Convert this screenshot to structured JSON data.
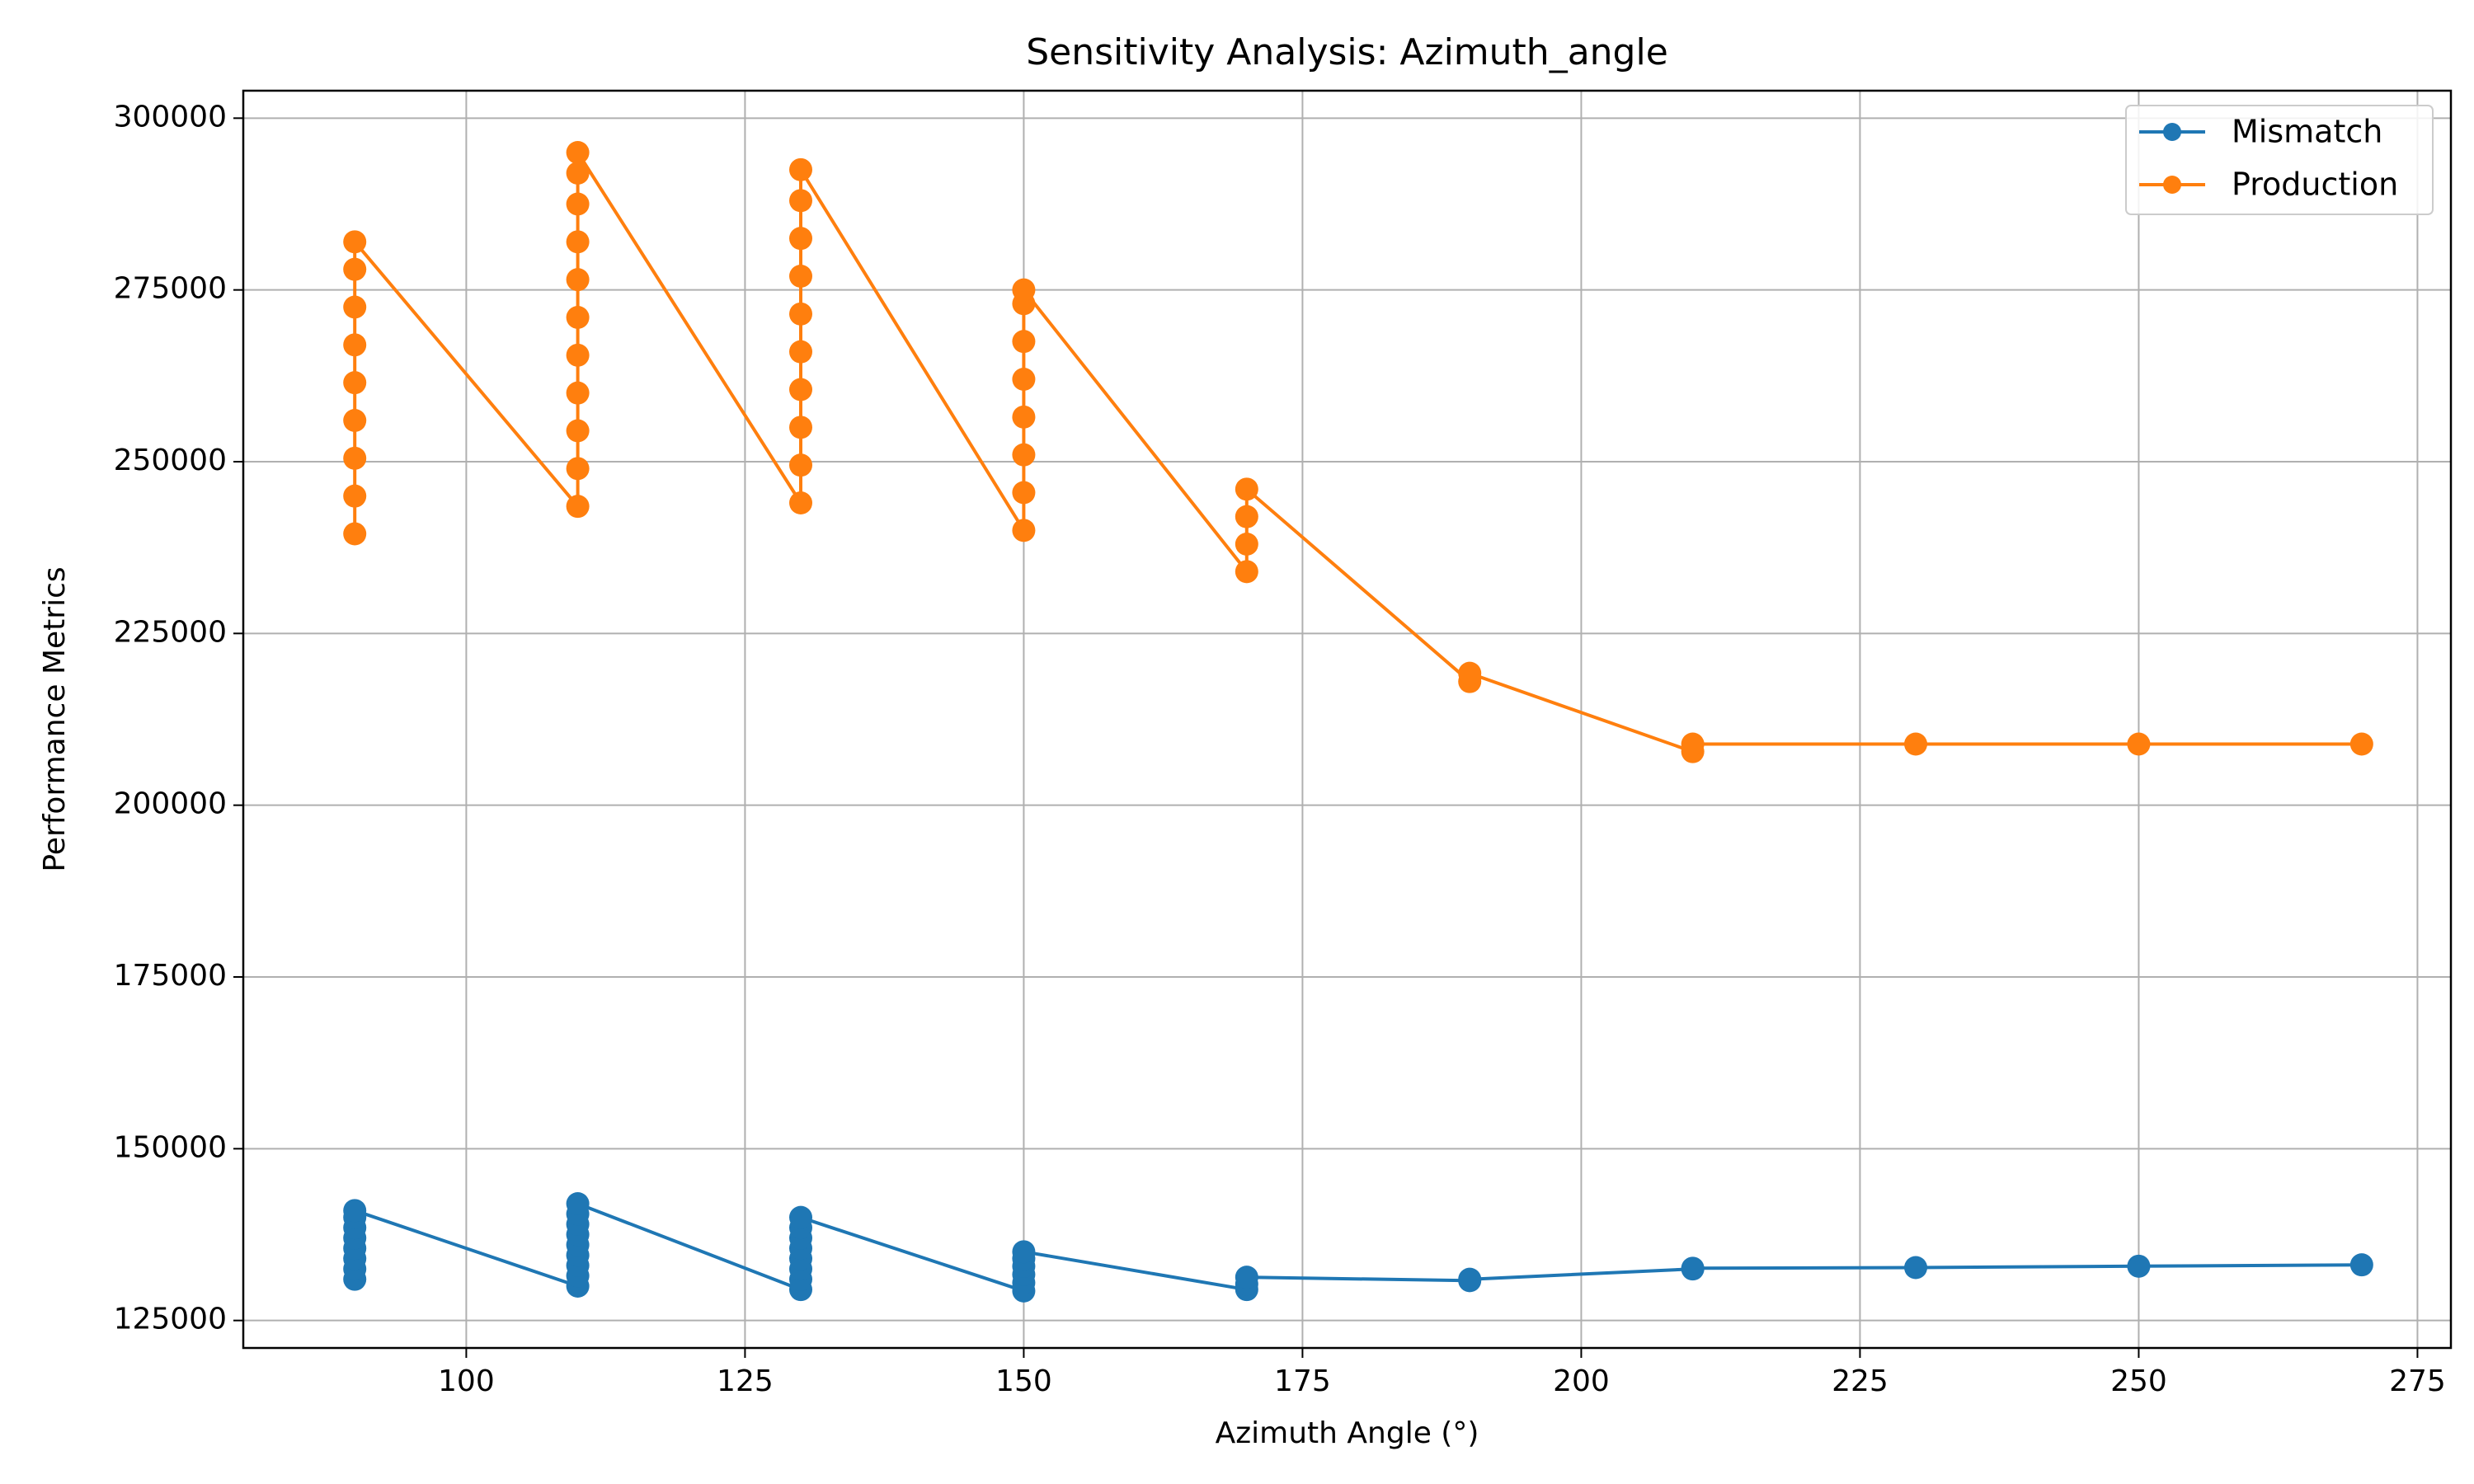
{
  "chart_data": {
    "type": "line",
    "title": "Sensitivity Analysis: Azimuth_angle",
    "xlabel": "Azimuth Angle (°)",
    "ylabel": "Performance Metrics",
    "xlim": [
      80,
      278
    ],
    "ylim": [
      121000,
      304000
    ],
    "xticks": [
      100,
      125,
      150,
      175,
      200,
      225,
      250,
      275
    ],
    "yticks": [
      125000,
      150000,
      175000,
      200000,
      225000,
      250000,
      275000,
      300000
    ],
    "grid": true,
    "legend_position": "top-right",
    "series": [
      {
        "name": "Mismatch",
        "color": "#1f77b4",
        "points": [
          {
            "x": 90,
            "y": 131000
          },
          {
            "x": 90,
            "y": 132500
          },
          {
            "x": 90,
            "y": 134000
          },
          {
            "x": 90,
            "y": 135500
          },
          {
            "x": 90,
            "y": 137000
          },
          {
            "x": 90,
            "y": 138500
          },
          {
            "x": 90,
            "y": 140000
          },
          {
            "x": 90,
            "y": 141000
          },
          {
            "x": 110,
            "y": 130000
          },
          {
            "x": 110,
            "y": 131500
          },
          {
            "x": 110,
            "y": 133000
          },
          {
            "x": 110,
            "y": 134500
          },
          {
            "x": 110,
            "y": 136000
          },
          {
            "x": 110,
            "y": 137500
          },
          {
            "x": 110,
            "y": 139000
          },
          {
            "x": 110,
            "y": 140500
          },
          {
            "x": 110,
            "y": 142000
          },
          {
            "x": 130,
            "y": 129500
          },
          {
            "x": 130,
            "y": 131000
          },
          {
            "x": 130,
            "y": 132500
          },
          {
            "x": 130,
            "y": 134000
          },
          {
            "x": 130,
            "y": 135500
          },
          {
            "x": 130,
            "y": 137000
          },
          {
            "x": 130,
            "y": 138500
          },
          {
            "x": 130,
            "y": 140000
          },
          {
            "x": 150,
            "y": 129300
          },
          {
            "x": 150,
            "y": 130500
          },
          {
            "x": 150,
            "y": 131700
          },
          {
            "x": 150,
            "y": 132900
          },
          {
            "x": 150,
            "y": 134000
          },
          {
            "x": 150,
            "y": 135000
          },
          {
            "x": 170,
            "y": 129500
          },
          {
            "x": 170,
            "y": 130300
          },
          {
            "x": 170,
            "y": 131300
          },
          {
            "x": 190,
            "y": 130800
          },
          {
            "x": 190,
            "y": 131000
          },
          {
            "x": 210,
            "y": 132500
          },
          {
            "x": 210,
            "y": 132600
          },
          {
            "x": 230,
            "y": 132700
          },
          {
            "x": 250,
            "y": 132900
          },
          {
            "x": 270,
            "y": 133100
          }
        ]
      },
      {
        "name": "Production",
        "color": "#ff7f0e",
        "points": [
          {
            "x": 90,
            "y": 239500
          },
          {
            "x": 90,
            "y": 245000
          },
          {
            "x": 90,
            "y": 250500
          },
          {
            "x": 90,
            "y": 256000
          },
          {
            "x": 90,
            "y": 261500
          },
          {
            "x": 90,
            "y": 267000
          },
          {
            "x": 90,
            "y": 272500
          },
          {
            "x": 90,
            "y": 278000
          },
          {
            "x": 90,
            "y": 282000
          },
          {
            "x": 110,
            "y": 243500
          },
          {
            "x": 110,
            "y": 249000
          },
          {
            "x": 110,
            "y": 254500
          },
          {
            "x": 110,
            "y": 260000
          },
          {
            "x": 110,
            "y": 265500
          },
          {
            "x": 110,
            "y": 271000
          },
          {
            "x": 110,
            "y": 276500
          },
          {
            "x": 110,
            "y": 282000
          },
          {
            "x": 110,
            "y": 287500
          },
          {
            "x": 110,
            "y": 292000
          },
          {
            "x": 110,
            "y": 295000
          },
          {
            "x": 130,
            "y": 244000
          },
          {
            "x": 130,
            "y": 249500
          },
          {
            "x": 130,
            "y": 255000
          },
          {
            "x": 130,
            "y": 260500
          },
          {
            "x": 130,
            "y": 266000
          },
          {
            "x": 130,
            "y": 271500
          },
          {
            "x": 130,
            "y": 277000
          },
          {
            "x": 130,
            "y": 282500
          },
          {
            "x": 130,
            "y": 288000
          },
          {
            "x": 130,
            "y": 292500
          },
          {
            "x": 150,
            "y": 240000
          },
          {
            "x": 150,
            "y": 245500
          },
          {
            "x": 150,
            "y": 251000
          },
          {
            "x": 150,
            "y": 256500
          },
          {
            "x": 150,
            "y": 262000
          },
          {
            "x": 150,
            "y": 267500
          },
          {
            "x": 150,
            "y": 273000
          },
          {
            "x": 150,
            "y": 275000
          },
          {
            "x": 170,
            "y": 234000
          },
          {
            "x": 170,
            "y": 238000
          },
          {
            "x": 170,
            "y": 242000
          },
          {
            "x": 170,
            "y": 246000
          },
          {
            "x": 190,
            "y": 218000
          },
          {
            "x": 190,
            "y": 219200
          },
          {
            "x": 210,
            "y": 207800
          },
          {
            "x": 210,
            "y": 208900
          },
          {
            "x": 230,
            "y": 208900
          },
          {
            "x": 250,
            "y": 208900
          },
          {
            "x": 270,
            "y": 208900
          }
        ]
      }
    ]
  }
}
